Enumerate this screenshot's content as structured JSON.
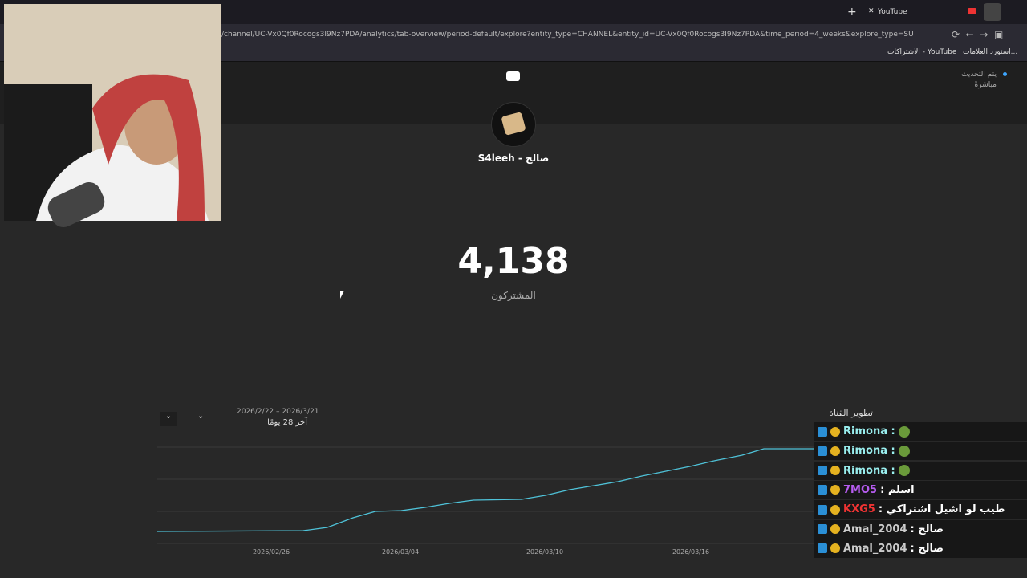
{
  "browser": {
    "tab_title": "YouTube",
    "url": "/channel/UC-Vx0Qf0Rocogs3I9Nz7PDA/analytics/tab-overview/period-default/explore?entity_type=CHANNEL&entity_id=UC-Vx0Qf0Rocogs3I9Nz7PDA&time_period=4_weeks&explore_type=SU",
    "bookmarks": [
      "استورد العلامات...",
      "الاشتراكات - YouTube"
    ]
  },
  "live_status": [
    "يتم التحديث",
    "مباشرةً"
  ],
  "channel": {
    "name": "S4leeh - صالح"
  },
  "subscribers": {
    "count": "4,138",
    "label": "المشتركون"
  },
  "chart_panel": {
    "title": "تطوير القناة",
    "date_range": "2026/2/22 – 2026/3/21",
    "period": "آخر 28 يومًا",
    "x_labels": [
      "2026/02/26",
      "2026/03/04",
      "2026/03/10",
      "2026/03/16"
    ]
  },
  "chat": [
    {
      "name": "Rimona :"
    },
    {
      "name": "Rimona :"
    },
    {
      "name": "Rimona :"
    },
    {
      "name": "7MO5",
      "text": "اسلم :"
    },
    {
      "name": "KXG5",
      "text": "طيب لو اشيل اشتراكي :"
    },
    {
      "name": "Amal_2004",
      "text": "صالح :"
    },
    {
      "name": "Amal_2004",
      "text": "صالح :"
    }
  ]
}
